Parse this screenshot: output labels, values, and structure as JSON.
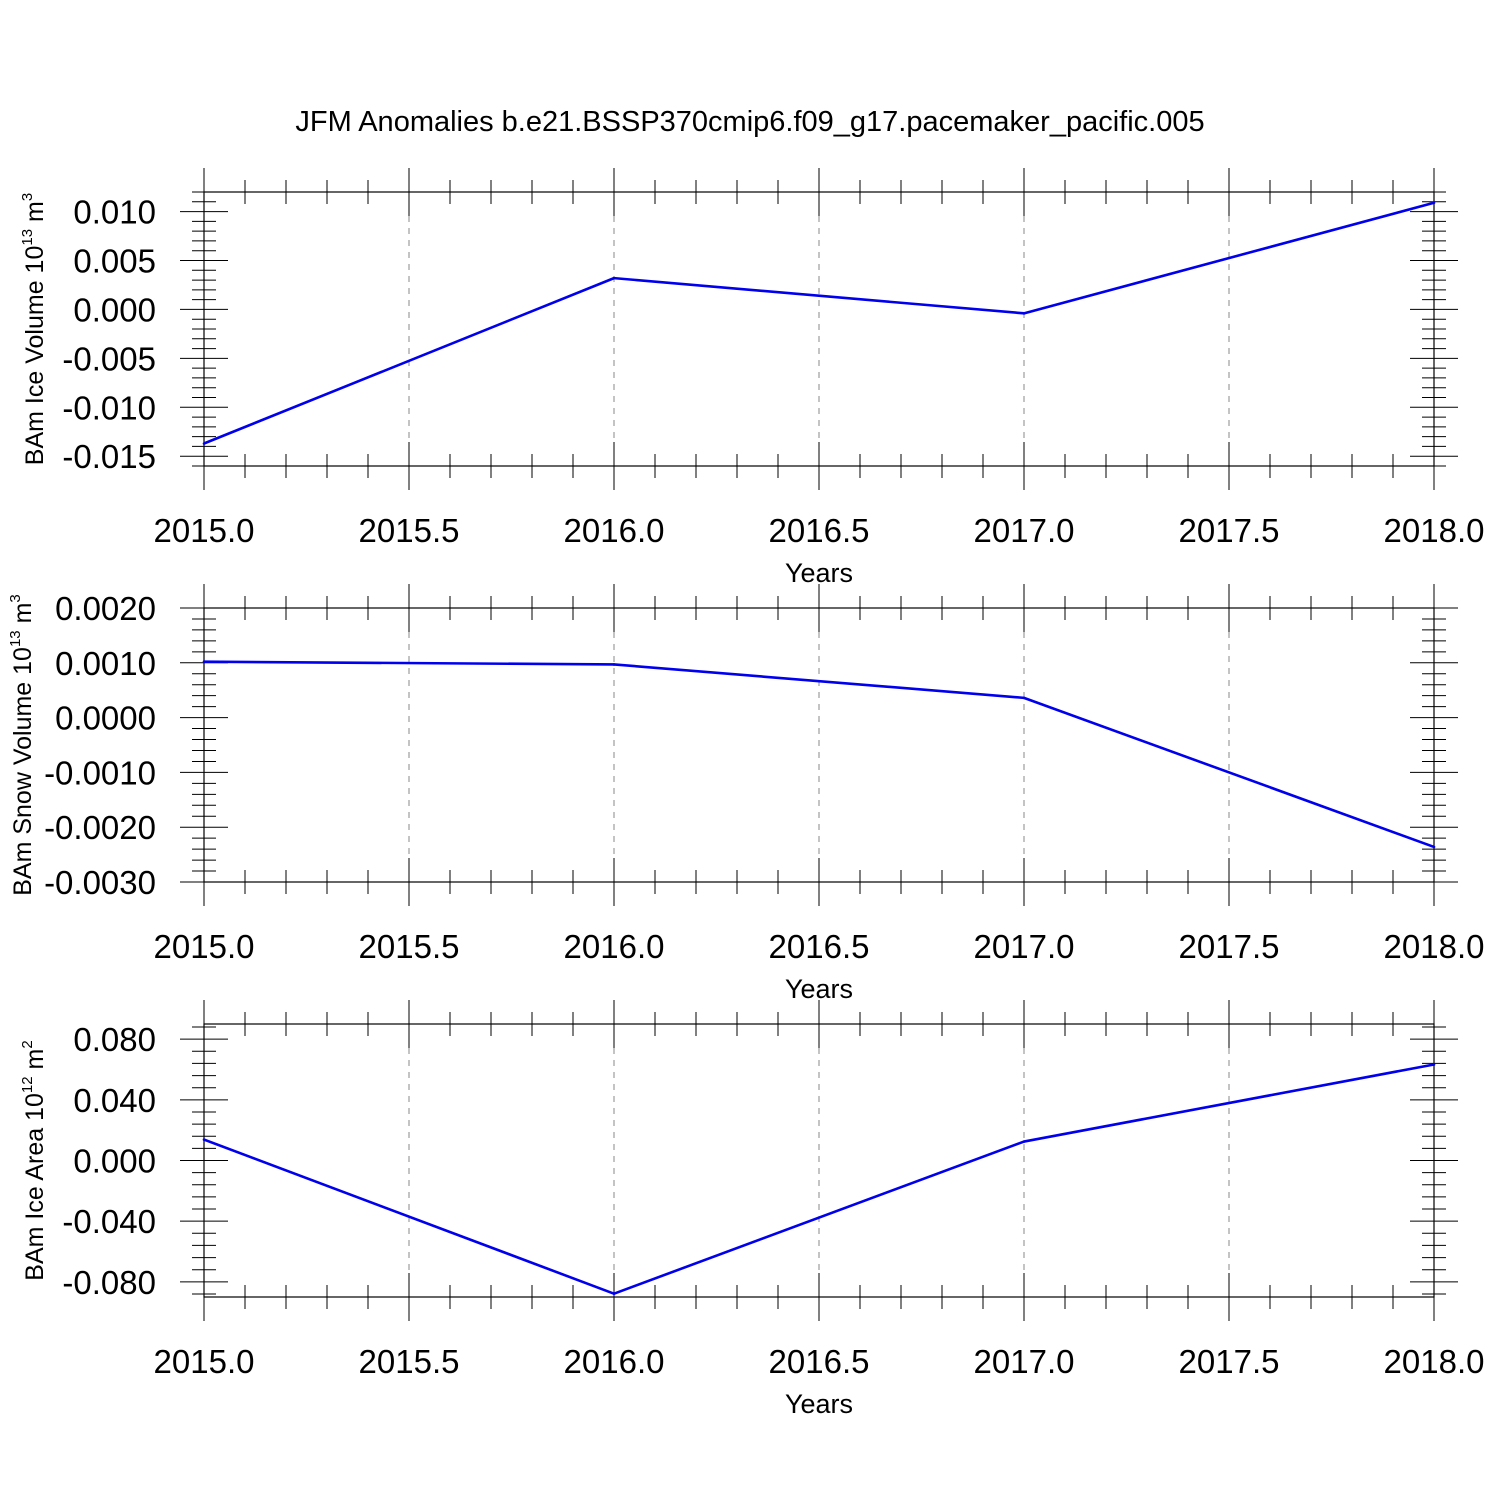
{
  "title": "JFM Anomalies b.e21.BSSP370cmip6.f09_g17.pacemaker_pacific.005",
  "line_color": "#0000ee",
  "grid_color": "#888888",
  "chart_data": [
    {
      "type": "line",
      "xlabel": "Years",
      "ylabel": {
        "main": "BAm Ice Volume 10",
        "exponent": "13",
        "unit": "m",
        "unit_exponent": "3"
      },
      "xlim": [
        2015.0,
        2018.0
      ],
      "ylim": [
        -0.016,
        0.012
      ],
      "x_ticks": [
        "2015.0",
        "2015.5",
        "2016.0",
        "2016.5",
        "2017.0",
        "2017.5",
        "2018.0"
      ],
      "y_ticks": [
        "0.010",
        "0.005",
        "0.000",
        "-0.005",
        "-0.010",
        "-0.015"
      ],
      "series": [
        {
          "x": [
            2015,
            2016,
            2017,
            2018
          ],
          "values": [
            -0.0137,
            0.0032,
            -0.0004,
            0.0109
          ]
        }
      ]
    },
    {
      "type": "line",
      "xlabel": "Years",
      "ylabel": {
        "main": "BAm Snow Volume 10",
        "exponent": "13",
        "unit": "m",
        "unit_exponent": "3"
      },
      "xlim": [
        2015.0,
        2018.0
      ],
      "ylim": [
        -0.003,
        0.002
      ],
      "x_ticks": [
        "2015.0",
        "2015.5",
        "2016.0",
        "2016.5",
        "2017.0",
        "2017.5",
        "2018.0"
      ],
      "y_ticks": [
        "0.0020",
        "0.0010",
        "0.0000",
        "-0.0010",
        "-0.0020",
        "-0.0030"
      ],
      "series": [
        {
          "x": [
            2015,
            2016,
            2017,
            2018
          ],
          "values": [
            0.00102,
            0.00097,
            0.00036,
            -0.00236
          ]
        }
      ]
    },
    {
      "type": "line",
      "xlabel": "Years",
      "ylabel": {
        "main": "BAm Ice Area 10",
        "exponent": "12",
        "unit": "m",
        "unit_exponent": "2"
      },
      "xlim": [
        2015.0,
        2018.0
      ],
      "ylim": [
        -0.09,
        0.09
      ],
      "x_ticks": [
        "2015.0",
        "2015.5",
        "2016.0",
        "2016.5",
        "2017.0",
        "2017.5",
        "2018.0"
      ],
      "y_ticks": [
        "0.080",
        "0.040",
        "0.000",
        "-0.040",
        "-0.080"
      ],
      "series": [
        {
          "x": [
            2015,
            2016,
            2017,
            2018
          ],
          "values": [
            0.0138,
            -0.0878,
            0.0125,
            0.0633
          ]
        }
      ]
    }
  ]
}
